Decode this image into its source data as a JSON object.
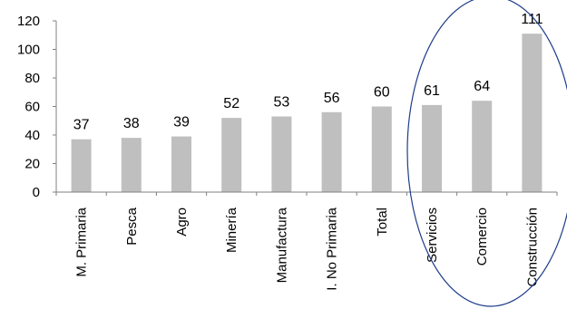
{
  "chart_data": {
    "type": "bar",
    "categories": [
      "M. Primaria",
      "Pesca",
      "Agro",
      "Minería",
      "Manufactura",
      "I. No Primaria",
      "Total",
      "Servicios",
      "Comercio",
      "Construcción"
    ],
    "values": [
      37,
      38,
      39,
      52,
      53,
      56,
      60,
      61,
      64,
      111
    ],
    "data_labels": [
      "37",
      "38",
      "39",
      "52",
      "53",
      "56",
      "60",
      "61",
      "64",
      "111"
    ],
    "yticks": [
      "0",
      "20",
      "40",
      "60",
      "80",
      "100",
      "120"
    ],
    "ylim": [
      0,
      120
    ],
    "title": "",
    "xlabel": "",
    "ylabel": "",
    "grid": false,
    "legend": "none",
    "colors": {
      "bar": "#bfbfbf",
      "axis": "#808080",
      "highlight_ellipse": "#1f3d8a"
    },
    "highlight": {
      "shape": "ellipse",
      "categories": [
        "Servicios",
        "Comercio",
        "Construcción"
      ]
    }
  }
}
